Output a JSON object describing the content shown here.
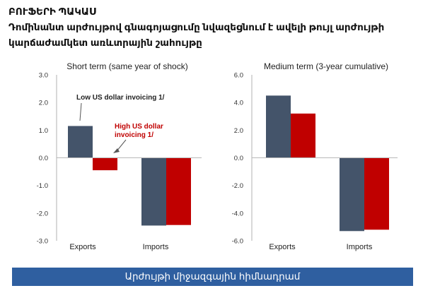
{
  "header": {
    "kicker": "ԲՈՒՖԵՐԻ ՊԱԿԱՍ",
    "subtitle_line1": "Դոմինանտ արժույթով գնագոյացումը նվազեցնում է ավելի թույլ արժույթի",
    "subtitle_line2": "կարճաժամկետ առևտրային շահույթը"
  },
  "footer": {
    "text": "Արժույթի միջազգային հիմնադրամ"
  },
  "colors": {
    "low_usd": "#44546a",
    "high_usd": "#c00000",
    "footer_bg": "#2f5fa0"
  },
  "chart_data": [
    {
      "type": "bar",
      "title": "Short term (same year of shock)",
      "categories": [
        "Exports",
        "Imports"
      ],
      "series": [
        {
          "name": "Low US dollar invoicing 1/",
          "values": [
            1.15,
            -2.45
          ]
        },
        {
          "name": "High US dollar invoicing 1/",
          "values": [
            -0.45,
            -2.43
          ]
        }
      ],
      "ylim": [
        -3.0,
        3.0
      ],
      "yticks": [
        "-3.0",
        "-2.0",
        "-1.0",
        "0.0",
        "1.0",
        "2.0",
        "3.0"
      ],
      "legend": "annotations"
    },
    {
      "type": "bar",
      "title": "Medium term (3-year cumulative)",
      "categories": [
        "Exports",
        "Imports"
      ],
      "series": [
        {
          "values": [
            4.5,
            -5.3
          ]
        },
        {
          "values": [
            3.2,
            -5.2
          ]
        }
      ],
      "ylim": [
        -6.0,
        6.0
      ],
      "yticks": [
        "-6.0",
        "-4.0",
        "-2.0",
        "0.0",
        "2.0",
        "4.0",
        "6.0"
      ]
    }
  ]
}
